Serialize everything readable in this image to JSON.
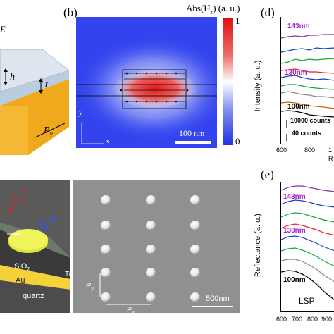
{
  "panel_labels": {
    "b": "(b)",
    "d": "(d)",
    "e": "(e)"
  },
  "panel_a": {
    "dim_h": "h",
    "dim_t": "t",
    "dim_py": "P",
    "dim_py_sub": "y",
    "edge_letter": "E"
  },
  "panel_b": {
    "colorbar_title": "Abs(H",
    "colorbar_title_sub": "z",
    "colorbar_title_tail": ") (a. u.)",
    "colorbar_max": "1",
    "colorbar_min": "0",
    "axis_y": "y",
    "axis_x": "x",
    "scale_bar": "100 nm",
    "colors": {
      "background": "#3344ee",
      "hot": "#ee2222",
      "mid": "#ffffff"
    }
  },
  "panel_d": {
    "ylabel": "Intensity (a. u.)",
    "xticks": [
      "600",
      "800",
      "1"
    ],
    "xlabel_partial": "R",
    "labels": [
      {
        "text": "143nm",
        "color": "#aa22cc"
      },
      {
        "text": "130nm",
        "color": "#aa22cc"
      },
      {
        "text": "100nm",
        "color": "#000000"
      }
    ],
    "scale_notes": [
      "10000 counts",
      "40 counts"
    ]
  },
  "panel_c": {
    "axis_y": "y",
    "axis_z": "z",
    "axis_x": "x",
    "axis_k": "k",
    "axis_E": "E",
    "layers": [
      "SiO",
      "Au",
      "quartz",
      "Ti"
    ],
    "sio2_sub": "2"
  },
  "panel_sem": {
    "p_y": "P",
    "p_y_sub": "y",
    "p_x": "P",
    "p_x_sub": "x",
    "scale_bar": "500nm"
  },
  "panel_e": {
    "ylabel": "Reflectance (a. u.)",
    "xticks": [
      "600",
      "700",
      "800",
      "900",
      "1"
    ],
    "labels": [
      {
        "text": "143nm",
        "color": "#aa22cc"
      },
      {
        "text": "130nm",
        "color": "#aa22cc"
      },
      {
        "text": "100nm",
        "color": "#000000"
      }
    ],
    "annotation": "LSP"
  }
}
